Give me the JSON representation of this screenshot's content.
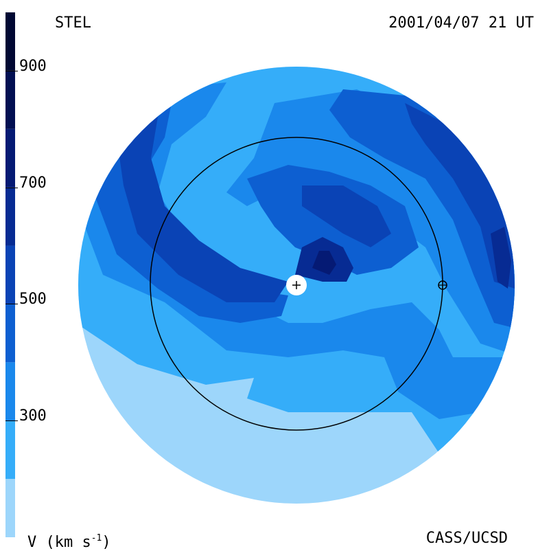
{
  "header": {
    "source": "STEL",
    "timestamp": "2001/04/07 21 UT"
  },
  "footer": {
    "unit": "V (km s",
    "unit_exp": "-1",
    "unit_close": ")",
    "credit": "CASS/UCSD"
  },
  "chart_data": {
    "type": "heatmap",
    "title": "",
    "quantity": "V (km s-1)",
    "colorbar": {
      "ticks": [
        300,
        500,
        700,
        900
      ],
      "tick_labels": [
        "300",
        "500",
        "700",
        "900"
      ],
      "range": [
        100,
        1000
      ],
      "levels": [
        {
          "min": 100,
          "max": 200,
          "color": "#9dd6fb"
        },
        {
          "min": 200,
          "max": 300,
          "color": "#35adf9"
        },
        {
          "min": 300,
          "max": 400,
          "color": "#1a88ec"
        },
        {
          "min": 400,
          "max": 500,
          "color": "#0d5fd1"
        },
        {
          "min": 500,
          "max": 600,
          "color": "#0a43b5"
        },
        {
          "min": 600,
          "max": 700,
          "color": "#072b93"
        },
        {
          "min": 700,
          "max": 800,
          "color": "#051a74"
        },
        {
          "min": 800,
          "max": 900,
          "color": "#020f52"
        },
        {
          "min": 900,
          "max": 1000,
          "color": "#010833"
        }
      ]
    },
    "markers": [
      {
        "name": "Sun",
        "symbol": "+"
      },
      {
        "name": "Earth",
        "symbol": "⊕"
      }
    ],
    "reference_circle": "Earth orbit (1 AU)",
    "grid": false,
    "legend": "left colorbar"
  }
}
